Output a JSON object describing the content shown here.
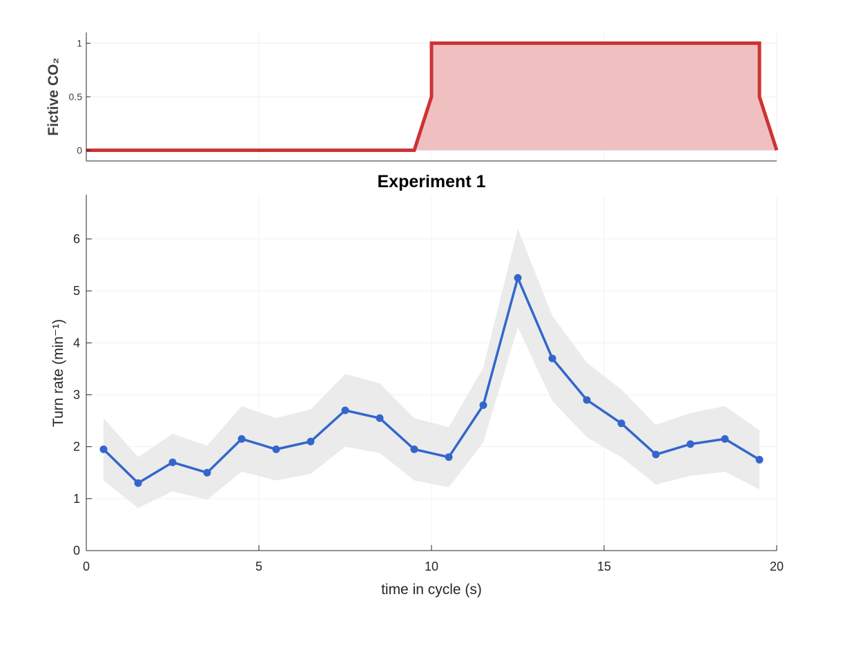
{
  "chart_data": [
    {
      "type": "area",
      "ylabel": "Fictive CO₂",
      "xlabel": "",
      "title": "",
      "xlim": [
        0,
        20
      ],
      "ylim": [
        -0.1,
        1.1
      ],
      "yticks": [
        0,
        0.5,
        1
      ],
      "ytick_labels": [
        "0",
        "0.5",
        "1"
      ],
      "grid": true,
      "series": [
        {
          "x": [
            0,
            9.5,
            10,
            10,
            19.5,
            19.5,
            20
          ],
          "y": [
            0,
            0,
            0.5,
            1,
            1,
            0.5,
            0
          ],
          "line_color": "#cd3333",
          "fill_color": "#f0c0c0"
        }
      ]
    },
    {
      "type": "line",
      "title": "Experiment 1",
      "xlabel": "time in cycle (s)",
      "ylabel": "Turn rate (min⁻¹)",
      "xlim": [
        0,
        20
      ],
      "ylim": [
        0,
        6.85
      ],
      "xticks": [
        0,
        5,
        10,
        15,
        20
      ],
      "xtick_labels": [
        "0",
        "5",
        "10",
        "15",
        "20"
      ],
      "yticks": [
        0,
        1,
        2,
        3,
        4,
        5,
        6
      ],
      "ytick_labels": [
        "0",
        "1",
        "2",
        "3",
        "4",
        "5",
        "6"
      ],
      "grid": true,
      "series": [
        {
          "x": [
            0.5,
            1.5,
            2.5,
            3.5,
            4.5,
            5.5,
            6.5,
            7.5,
            8.5,
            9.5,
            10.5,
            11.5,
            12.5,
            13.5,
            14.5,
            15.5,
            16.5,
            17.5,
            18.5,
            19.5
          ],
          "y": [
            1.95,
            1.3,
            1.7,
            1.5,
            2.15,
            1.95,
            2.1,
            2.7,
            2.55,
            1.95,
            1.8,
            2.8,
            5.25,
            3.7,
            2.9,
            2.45,
            1.85,
            2.05,
            2.15,
            1.75
          ],
          "upper": [
            2.55,
            1.8,
            2.25,
            2.02,
            2.78,
            2.55,
            2.72,
            3.4,
            3.22,
            2.55,
            2.38,
            3.52,
            6.2,
            4.52,
            3.62,
            3.1,
            2.42,
            2.65,
            2.78,
            2.32
          ],
          "lower": [
            1.35,
            0.82,
            1.14,
            0.98,
            1.52,
            1.35,
            1.48,
            2.0,
            1.88,
            1.35,
            1.22,
            2.08,
            4.3,
            2.88,
            2.18,
            1.8,
            1.27,
            1.44,
            1.52,
            1.18
          ],
          "line_color": "#3366cc",
          "band_color": "#ebebeb"
        }
      ]
    }
  ]
}
